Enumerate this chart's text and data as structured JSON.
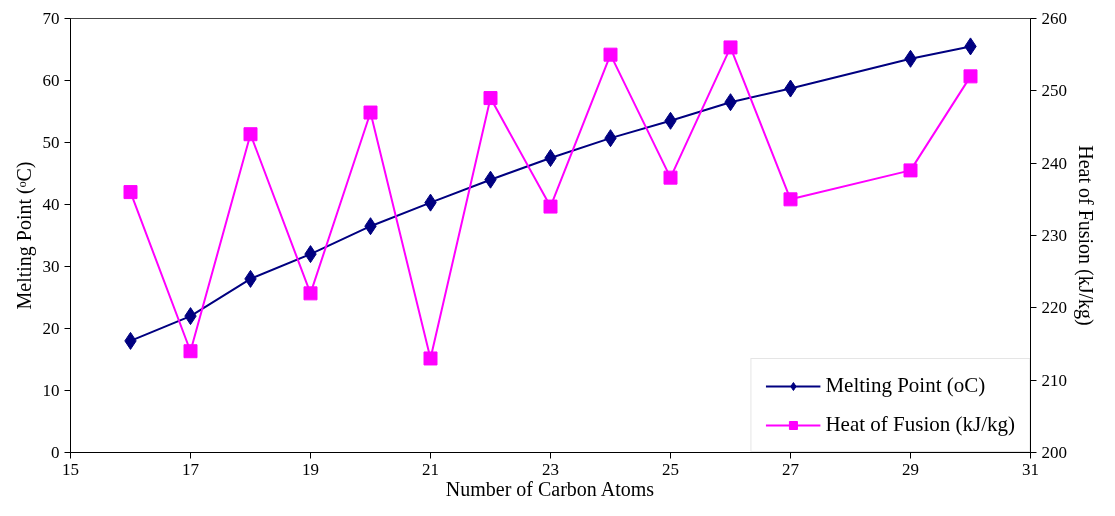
{
  "chart_data": {
    "type": "line",
    "xlabel": "Number of Carbon Atoms",
    "ylabel": "Melting Point (ᵒC)",
    "y2label": "Heat of Fusion (kJ/kg)",
    "xlim": [
      15,
      31
    ],
    "xticks": [
      15,
      17,
      19,
      21,
      23,
      25,
      27,
      29,
      31
    ],
    "ylim": [
      0,
      70
    ],
    "yticks": [
      0,
      10,
      20,
      30,
      40,
      50,
      60,
      70
    ],
    "y2lim": [
      200,
      260
    ],
    "y2ticks": [
      200,
      210,
      220,
      230,
      240,
      250,
      260
    ],
    "grid": false,
    "legend": "bottom right",
    "series": [
      {
        "name": "Melting Point (oC)",
        "color": "#000080",
        "marker": "diamond",
        "x": [
          16,
          17,
          18,
          19,
          20,
          21,
          22,
          23,
          24,
          25,
          26,
          27,
          29,
          30
        ],
        "values": [
          18,
          22,
          28,
          32,
          36.5,
          40.3,
          44,
          47.5,
          50.7,
          53.5,
          56.5,
          58.7,
          63.5,
          65.5
        ]
      },
      {
        "name": "Heat of Fusion (kJ/kg)",
        "color": "#ff00ff",
        "marker": "square",
        "axis": "y2",
        "x": [
          16,
          17,
          18,
          19,
          20,
          21,
          22,
          23,
          24,
          25,
          26,
          27,
          29,
          30
        ],
        "values": [
          236,
          214,
          244,
          222,
          247,
          213,
          249,
          234,
          255,
          238,
          256,
          235,
          239,
          252
        ]
      }
    ]
  }
}
